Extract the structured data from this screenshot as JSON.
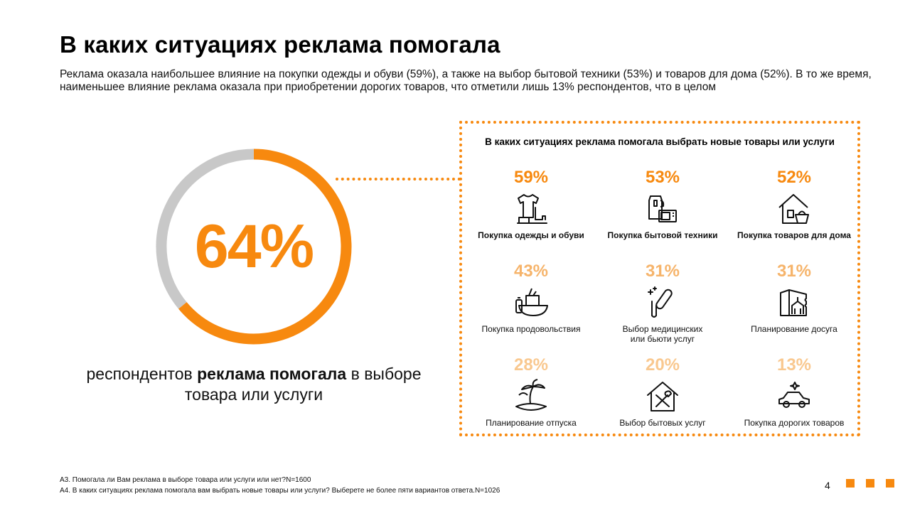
{
  "header": {
    "title": "В каких ситуациях реклама помогала",
    "subtitle": "Реклама оказала наибольшее влияние на покупки одежды и обуви (59%), а также на выбор бытовой техники (53%) и товаров для дома (52%). В то же время, наименьшее влияние реклама оказала при приобретении дорогих товаров, что отметили лишь 13% респондентов, что в целом"
  },
  "donut": {
    "value_label": "64%",
    "caption_pre": "респондентов ",
    "caption_bold": "реклама помогала",
    "caption_post": " в выборе товара или услуги"
  },
  "panel": {
    "title": "В каких ситуациях реклама помогала выбрать новые товары или услуги"
  },
  "colors": {
    "accent": "#f7890f",
    "accent_light": "#f6b46b",
    "accent_pale": "#f9c88f",
    "track": "#c8c8c8"
  },
  "chart_data": [
    {
      "type": "pie",
      "title": "",
      "labels": [
        "реклама помогала",
        ""
      ],
      "values": [
        64,
        36
      ]
    },
    {
      "type": "table",
      "title": "В каких ситуациях реклама помогала выбрать новые товары или услуги",
      "categories": [
        "Покупка одежды и обуви",
        "Покупка бытовой техники",
        "Покупка товаров для дома",
        "Покупка продовольствия",
        "Выбор медицинских или бьюти услуг",
        "Планирование досуга",
        "Планирование отпуска",
        "Выбор бытовых услуг",
        "Покупка дорогих товаров"
      ],
      "values": [
        59,
        53,
        52,
        43,
        31,
        31,
        28,
        20,
        13
      ]
    }
  ],
  "items": [
    {
      "pct": "59%",
      "label": "Покупка одежды и обуви",
      "icon": "clothes-icon"
    },
    {
      "pct": "53%",
      "label": "Покупка бытовой техники",
      "icon": "appliances-icon"
    },
    {
      "pct": "52%",
      "label": "Покупка товаров для дома",
      "icon": "home-goods-icon"
    },
    {
      "pct": "43%",
      "label": "Покупка продовольствия",
      "icon": "groceries-icon"
    },
    {
      "pct": "31%",
      "label_1": "Выбор медицинских",
      "label_2": "или бьюти услуг",
      "icon": "beauty-icon"
    },
    {
      "pct": "31%",
      "label": "Планирование досуга",
      "icon": "leisure-icon"
    },
    {
      "pct": "28%",
      "label": "Планирование отпуска",
      "icon": "vacation-icon"
    },
    {
      "pct": "20%",
      "label": "Выбор бытовых услуг",
      "icon": "repair-services-icon"
    },
    {
      "pct": "13%",
      "label": "Покупка дорогих товаров",
      "icon": "car-icon"
    }
  ],
  "footer": {
    "note_1": "А3. Помогала ли Вам реклама в выборе товара или услуги или нет?N=1600",
    "note_2": "А4. В каких ситуациях реклама помогала вам выбрать новые товары или услуги? Выберете не более пяти вариантов ответа.N=1026",
    "page_number": "4"
  }
}
